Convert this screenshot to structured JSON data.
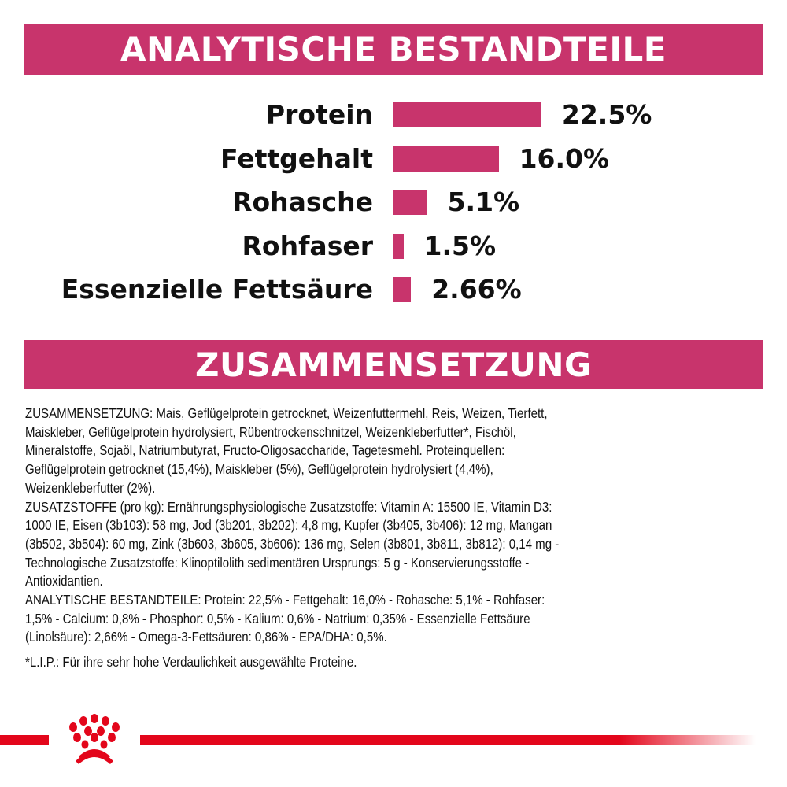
{
  "header1": "ANALYTISCHE BESTANDTEILE",
  "header2": "ZUSAMMENSETZUNG",
  "chart_data": {
    "type": "bar",
    "orientation": "horizontal",
    "categories": [
      "Protein",
      "Fettgehalt",
      "Rohasche",
      "Rohfaser",
      "Essenzielle Fettsäure"
    ],
    "values": [
      22.5,
      16.0,
      5.1,
      1.5,
      2.66
    ],
    "labels": [
      "22.5%",
      "16.0%",
      "5.1%",
      "1.5%",
      "2.66%"
    ],
    "unit": "%",
    "bar_color": "#c8346c",
    "grid": false
  },
  "composition_lines": [
    "ZUSAMMENSETZUNG: Mais, Geflügelprotein getrocknet, Weizenfuttermehl, Reis, Weizen, Tierfett,",
    "Maiskleber, Geflügelprotein hydrolysiert, Rübentrockenschnitzel, Weizenkleberfutter*, Fischöl,",
    "Mineralstoffe, Sojaöl, Natriumbutyrat, Fructo-Oligosaccharide, Tagetesmehl. Proteinquellen:",
    "Geflügelprotein getrocknet (15,4%), Maiskleber (5%), Geflügelprotein hydrolysiert (4,4%),",
    "Weizenkleberfutter (2%).",
    "ZUSATZSTOFFE (pro kg): Ernährungsphysiologische Zusatzstoffe: Vitamin A: 15500 IE, Vitamin D3:",
    "1000 IE, Eisen (3b103): 58 mg, Jod (3b201, 3b202): 4,8 mg, Kupfer (3b405, 3b406): 12 mg, Mangan",
    "(3b502, 3b504): 60 mg, Zink (3b603, 3b605, 3b606): 136 mg, Selen (3b801, 3b811, 3b812): 0,14 mg -",
    "Technologische Zusatzstoffe: Klinoptilolith sedimentären Ursprungs: 5 g - Konservierungsstoffe -",
    "Antioxidantien.",
    "ANALYTISCHE BESTANDTEILE: Protein: 22,5% - Fettgehalt: 16,0% - Rohasche: 5,1% - Rohfaser:",
    "1,5% - Calcium: 0,8% - Phosphor: 0,5% - Kalium: 0,6% - Natrium: 0,35% - Essenzielle Fettsäure",
    "(Linolsäure): 2,66% - Omega-3-Fettsäuren: 0,86% - EPA/DHA: 0,5%."
  ],
  "footnote": "*L.I.P.: Für ihre sehr hohe Verdaulichkeit ausgewählte Proteine.",
  "brand": {
    "logo": "royal-canin-crown-logo",
    "line_color": "#e3061b"
  }
}
